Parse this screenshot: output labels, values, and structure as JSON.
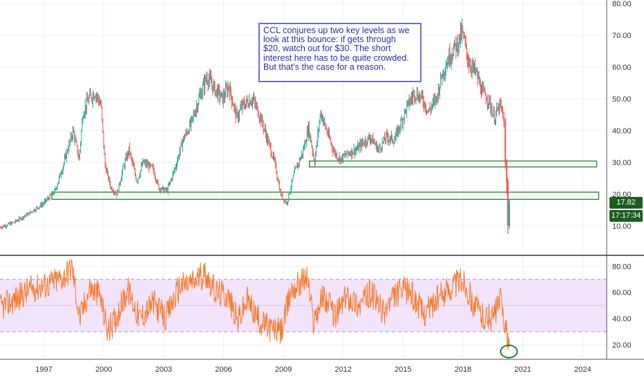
{
  "colors": {
    "candle_up": "#26a69a",
    "candle_down": "#ef5350",
    "support_box": "#2e7d32",
    "support_fill": "#e8f5e9",
    "rsi_line": "#f57c2b",
    "rsi_band": "#f1e4fb",
    "rsi_band_line": "#bb8fd8",
    "annotation_border": "#6b6bdc",
    "annotation_text": "#2a2ea8",
    "badge": "#1b5e20"
  },
  "annotation": {
    "text": "CCL conjures up two key levels as we\nlook at this bounce: if gets through\n$20, watch out for $30. The short\ninterest here has to be quite crowded.\nBut that's the case for a reason."
  },
  "badges": {
    "price": "17.82",
    "time": "17:17:34"
  },
  "chart_data": [
    {
      "type": "candlestick",
      "title": "",
      "y_axis": {
        "side": "right",
        "ylim": [
          5,
          80
        ],
        "ticks": [
          "10.00",
          "20.00",
          "30.00",
          "40.00",
          "50.00",
          "60.00",
          "70.00",
          "80.00"
        ]
      },
      "x_axis": {
        "ticks": [
          "1997",
          "2000",
          "2003",
          "2006",
          "2009",
          "2012",
          "2015",
          "2018",
          "2021",
          "2024"
        ],
        "xlim": [
          1994.8,
          2025.2
        ]
      },
      "price_path": [
        [
          1994.8,
          9.5
        ],
        [
          1995.5,
          11
        ],
        [
          1996.3,
          14
        ],
        [
          1997.0,
          17
        ],
        [
          1997.6,
          21
        ],
        [
          1998.0,
          29
        ],
        [
          1998.5,
          40
        ],
        [
          1998.8,
          31
        ],
        [
          1999.0,
          46
        ],
        [
          1999.3,
          50
        ],
        [
          1999.6,
          52
        ],
        [
          1999.9,
          48
        ],
        [
          2000.1,
          29
        ],
        [
          2000.4,
          22
        ],
        [
          2000.7,
          20
        ],
        [
          2001.0,
          28
        ],
        [
          2001.3,
          34
        ],
        [
          2001.7,
          24
        ],
        [
          2002.0,
          30
        ],
        [
          2002.5,
          28
        ],
        [
          2002.8,
          22
        ],
        [
          2003.2,
          21
        ],
        [
          2003.6,
          28
        ],
        [
          2004.0,
          37
        ],
        [
          2004.4,
          42
        ],
        [
          2004.8,
          50
        ],
        [
          2005.2,
          57
        ],
        [
          2005.6,
          53
        ],
        [
          2006.0,
          50
        ],
        [
          2006.3,
          54
        ],
        [
          2006.7,
          44
        ],
        [
          2007.0,
          48
        ],
        [
          2007.5,
          50
        ],
        [
          2007.9,
          44
        ],
        [
          2008.3,
          36
        ],
        [
          2008.6,
          30
        ],
        [
          2008.9,
          20
        ],
        [
          2009.2,
          17
        ],
        [
          2009.6,
          27
        ],
        [
          2010.0,
          33
        ],
        [
          2010.3,
          41
        ],
        [
          2010.6,
          30
        ],
        [
          2010.9,
          46
        ],
        [
          2011.2,
          40
        ],
        [
          2011.6,
          33
        ],
        [
          2011.9,
          31
        ],
        [
          2012.3,
          33
        ],
        [
          2012.7,
          34
        ],
        [
          2013.0,
          36
        ],
        [
          2013.4,
          38
        ],
        [
          2013.8,
          34
        ],
        [
          2014.2,
          38
        ],
        [
          2014.6,
          37
        ],
        [
          2014.9,
          42
        ],
        [
          2015.2,
          47
        ],
        [
          2015.6,
          52
        ],
        [
          2016.0,
          50
        ],
        [
          2016.3,
          46
        ],
        [
          2016.7,
          50
        ],
        [
          2017.0,
          58
        ],
        [
          2017.4,
          64
        ],
        [
          2017.8,
          68
        ],
        [
          2018.0,
          71
        ],
        [
          2018.3,
          62
        ],
        [
          2018.7,
          58
        ],
        [
          2019.0,
          52
        ],
        [
          2019.3,
          50
        ],
        [
          2019.6,
          44
        ],
        [
          2019.9,
          48
        ],
        [
          2020.05,
          44
        ],
        [
          2020.15,
          29
        ],
        [
          2020.25,
          9
        ],
        [
          2020.32,
          17.82
        ]
      ],
      "levels": [
        {
          "label": "$30",
          "x_range": [
            2010.3,
            2024.7
          ],
          "y_range": [
            29,
            30
          ]
        },
        {
          "label": "$20",
          "x_range": [
            1997.4,
            2024.8
          ],
          "y_range": [
            18.8,
            20.2
          ]
        }
      ]
    },
    {
      "type": "line",
      "name": "RSI",
      "y_axis": {
        "side": "right",
        "ylim": [
          10,
          87
        ],
        "ticks": [
          "20.00",
          "40.00",
          "60.00",
          "80.00"
        ]
      },
      "band": [
        30,
        70
      ],
      "rsi_path": [
        [
          1994.8,
          48
        ],
        [
          1995.6,
          55
        ],
        [
          1996.4,
          63
        ],
        [
          1997.2,
          66
        ],
        [
          1998.0,
          72
        ],
        [
          1998.4,
          80
        ],
        [
          1998.8,
          40
        ],
        [
          1999.3,
          63
        ],
        [
          1999.8,
          58
        ],
        [
          2000.2,
          30
        ],
        [
          2000.6,
          40
        ],
        [
          2001.2,
          62
        ],
        [
          2001.8,
          40
        ],
        [
          2002.5,
          52
        ],
        [
          2003.1,
          40
        ],
        [
          2003.8,
          65
        ],
        [
          2004.5,
          68
        ],
        [
          2005.1,
          75
        ],
        [
          2005.6,
          60
        ],
        [
          2006.2,
          58
        ],
        [
          2006.7,
          38
        ],
        [
          2007.2,
          54
        ],
        [
          2007.8,
          38
        ],
        [
          2008.4,
          32
        ],
        [
          2008.9,
          30
        ],
        [
          2009.4,
          62
        ],
        [
          2010.2,
          72
        ],
        [
          2010.5,
          38
        ],
        [
          2011.0,
          58
        ],
        [
          2011.6,
          42
        ],
        [
          2012.2,
          58
        ],
        [
          2012.8,
          50
        ],
        [
          2013.4,
          60
        ],
        [
          2014.0,
          44
        ],
        [
          2014.6,
          58
        ],
        [
          2015.3,
          62
        ],
        [
          2016.0,
          44
        ],
        [
          2016.8,
          56
        ],
        [
          2017.5,
          66
        ],
        [
          2018.0,
          70
        ],
        [
          2018.5,
          52
        ],
        [
          2019.0,
          42
        ],
        [
          2019.5,
          40
        ],
        [
          2019.9,
          55
        ],
        [
          2020.1,
          36
        ],
        [
          2020.25,
          22
        ],
        [
          2020.32,
          20
        ]
      ],
      "highlight": {
        "shape": "circle",
        "x": 2020.3,
        "y": 17
      }
    }
  ]
}
